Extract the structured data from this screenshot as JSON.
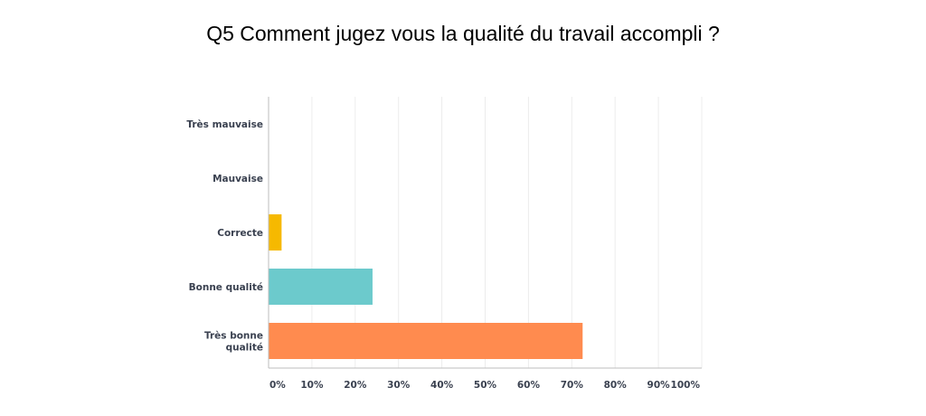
{
  "chart_data": {
    "type": "bar",
    "orientation": "horizontal",
    "title": "Q5 Comment jugez vous la qualité du travail accompli ?",
    "categories": [
      [
        "Très mauvaise"
      ],
      [
        "Mauvaise"
      ],
      [
        "Correcte"
      ],
      [
        "Bonne qualité"
      ],
      [
        "Très bonne",
        "qualité"
      ]
    ],
    "values": [
      0,
      0,
      3,
      24,
      72.5
    ],
    "colors": [
      "#cccccc",
      "#cccccc",
      "#f6b900",
      "#6ccacc",
      "#ff8b4f"
    ],
    "xlim": [
      0,
      100
    ],
    "xticks": [
      "0%",
      "10%",
      "20%",
      "30%",
      "40%",
      "50%",
      "60%",
      "70%",
      "80%",
      "90%",
      "100%"
    ],
    "grid": true,
    "legend": "none"
  }
}
